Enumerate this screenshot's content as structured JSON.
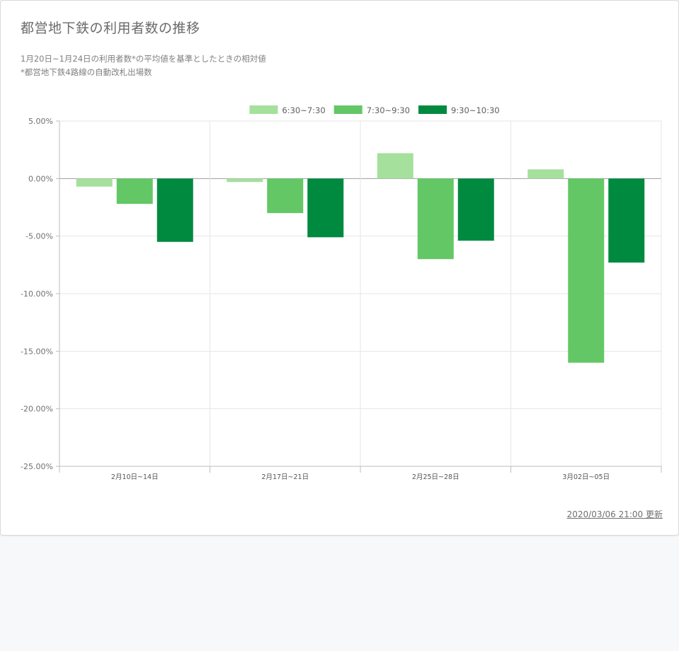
{
  "header": {
    "title": "都営地下鉄の利用者数の推移",
    "subtitle_1": "1月20日~1月24日の利用者数*の平均値を基準としたときの相対値",
    "subtitle_2": "*都営地下鉄4路線の自動改札出場数"
  },
  "footer": {
    "updated_label": "2020/03/06 21:00 更新"
  },
  "colors": {
    "series_1": "#a5e09d",
    "series_2": "#63c765",
    "series_3": "#008a40"
  },
  "chart_data": {
    "type": "bar",
    "categories": [
      "2月10日~14日",
      "2月17日~21日",
      "2月25日~28日",
      "3月02日~05日"
    ],
    "series": [
      {
        "name": "6:30~7:30",
        "color": "#a5e09d",
        "values": [
          -0.7,
          -0.3,
          2.2,
          0.8
        ]
      },
      {
        "name": "7:30~9:30",
        "color": "#63c765",
        "values": [
          -2.2,
          -3.0,
          -7.0,
          -16.0
        ]
      },
      {
        "name": "9:30~10:30",
        "color": "#008a40",
        "values": [
          -5.5,
          -5.1,
          -5.4,
          -7.3
        ]
      }
    ],
    "ylim": [
      -25,
      5
    ],
    "yticks": [
      5,
      0,
      -5,
      -10,
      -15,
      -20,
      -25
    ],
    "ytick_labels": [
      "5.00%",
      "0.00%",
      "-5.00%",
      "-10.00%",
      "-15.00%",
      "-20.00%",
      "-25.00%"
    ],
    "grid": true,
    "legend_position": "top-center"
  }
}
